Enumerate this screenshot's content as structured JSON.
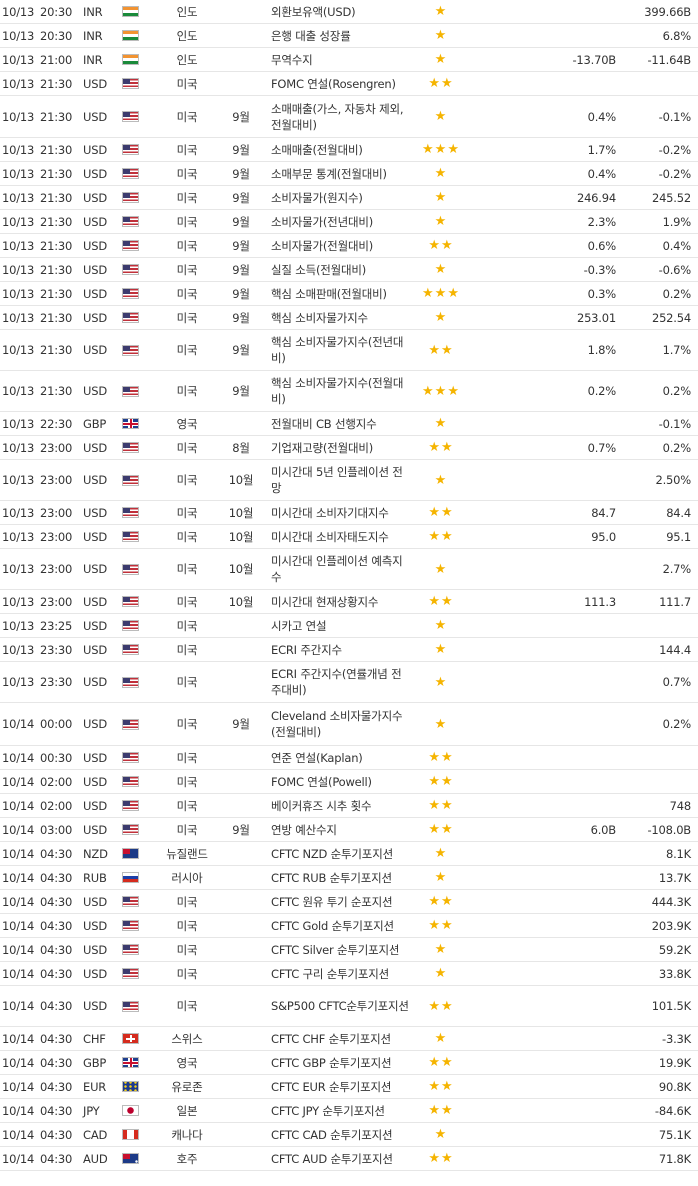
{
  "colors": {
    "star": "#f5b400",
    "divider": "#e6e6e6",
    "text": "#333333"
  },
  "rows": [
    {
      "date": "10/13",
      "time": "20:30",
      "cur": "INR",
      "flag": "india-flag",
      "country": "인도",
      "period": "",
      "event": "외환보유액(USD)",
      "stars": 1,
      "actual": "",
      "forecast": "",
      "previous": "399.66B"
    },
    {
      "date": "10/13",
      "time": "20:30",
      "cur": "INR",
      "flag": "india-flag",
      "country": "인도",
      "period": "",
      "event": "은행 대출 성장률",
      "stars": 1,
      "actual": "",
      "forecast": "",
      "previous": "6.8%"
    },
    {
      "date": "10/13",
      "time": "21:00",
      "cur": "INR",
      "flag": "india-flag",
      "country": "인도",
      "period": "",
      "event": "무역수지",
      "stars": 1,
      "actual": "",
      "forecast": "-13.70B",
      "previous": "-11.64B"
    },
    {
      "date": "10/13",
      "time": "21:30",
      "cur": "USD",
      "flag": "us-flag",
      "country": "미국",
      "period": "",
      "event": "FOMC 연설(Rosengren)",
      "stars": 2,
      "actual": "",
      "forecast": "",
      "previous": ""
    },
    {
      "date": "10/13",
      "time": "21:30",
      "cur": "USD",
      "flag": "us-flag",
      "country": "미국",
      "period": "9월",
      "event": "소매매출(가스, 자동차 제외, 전월대비)",
      "stars": 1,
      "actual": "",
      "forecast": "0.4%",
      "previous": "-0.1%"
    },
    {
      "date": "10/13",
      "time": "21:30",
      "cur": "USD",
      "flag": "us-flag",
      "country": "미국",
      "period": "9월",
      "event": "소매매출(전월대비)",
      "stars": 3,
      "actual": "",
      "forecast": "1.7%",
      "previous": "-0.2%"
    },
    {
      "date": "10/13",
      "time": "21:30",
      "cur": "USD",
      "flag": "us-flag",
      "country": "미국",
      "period": "9월",
      "event": "소매부문 통계(전월대비)",
      "stars": 1,
      "actual": "",
      "forecast": "0.4%",
      "previous": "-0.2%"
    },
    {
      "date": "10/13",
      "time": "21:30",
      "cur": "USD",
      "flag": "us-flag",
      "country": "미국",
      "period": "9월",
      "event": "소비자물가(원지수)",
      "stars": 1,
      "actual": "",
      "forecast": "246.94",
      "previous": "245.52"
    },
    {
      "date": "10/13",
      "time": "21:30",
      "cur": "USD",
      "flag": "us-flag",
      "country": "미국",
      "period": "9월",
      "event": "소비자물가(전년대비)",
      "stars": 1,
      "actual": "",
      "forecast": "2.3%",
      "previous": "1.9%"
    },
    {
      "date": "10/13",
      "time": "21:30",
      "cur": "USD",
      "flag": "us-flag",
      "country": "미국",
      "period": "9월",
      "event": "소비자물가(전월대비)",
      "stars": 2,
      "actual": "",
      "forecast": "0.6%",
      "previous": "0.4%"
    },
    {
      "date": "10/13",
      "time": "21:30",
      "cur": "USD",
      "flag": "us-flag",
      "country": "미국",
      "period": "9월",
      "event": "실질 소득(전월대비)",
      "stars": 1,
      "actual": "",
      "forecast": "-0.3%",
      "previous": "-0.6%"
    },
    {
      "date": "10/13",
      "time": "21:30",
      "cur": "USD",
      "flag": "us-flag",
      "country": "미국",
      "period": "9월",
      "event": "핵심 소매판매(전월대비)",
      "stars": 3,
      "actual": "",
      "forecast": "0.3%",
      "previous": "0.2%"
    },
    {
      "date": "10/13",
      "time": "21:30",
      "cur": "USD",
      "flag": "us-flag",
      "country": "미국",
      "period": "9월",
      "event": "핵심 소비자물가지수",
      "stars": 1,
      "actual": "",
      "forecast": "253.01",
      "previous": "252.54"
    },
    {
      "date": "10/13",
      "time": "21:30",
      "cur": "USD",
      "flag": "us-flag",
      "country": "미국",
      "period": "9월",
      "event": "핵심 소비자물가지수(전년대비)",
      "stars": 2,
      "actual": "",
      "forecast": "1.8%",
      "previous": "1.7%"
    },
    {
      "date": "10/13",
      "time": "21:30",
      "cur": "USD",
      "flag": "us-flag",
      "country": "미국",
      "period": "9월",
      "event": "핵심 소비자물가지수(전월대비)",
      "stars": 3,
      "actual": "",
      "forecast": "0.2%",
      "previous": "0.2%"
    },
    {
      "date": "10/13",
      "time": "22:30",
      "cur": "GBP",
      "flag": "uk-flag",
      "country": "영국",
      "period": "",
      "event": "전월대비 CB 선행지수",
      "stars": 1,
      "actual": "",
      "forecast": "",
      "previous": "-0.1%"
    },
    {
      "date": "10/13",
      "time": "23:00",
      "cur": "USD",
      "flag": "us-flag",
      "country": "미국",
      "period": "8월",
      "event": "기업재고량(전월대비)",
      "stars": 2,
      "actual": "",
      "forecast": "0.7%",
      "previous": "0.2%"
    },
    {
      "date": "10/13",
      "time": "23:00",
      "cur": "USD",
      "flag": "us-flag",
      "country": "미국",
      "period": "10월",
      "event": "미시간대 5년 인플레이션 전망",
      "stars": 1,
      "actual": "",
      "forecast": "",
      "previous": "2.50%"
    },
    {
      "date": "10/13",
      "time": "23:00",
      "cur": "USD",
      "flag": "us-flag",
      "country": "미국",
      "period": "10월",
      "event": "미시간대 소비자기대지수",
      "stars": 2,
      "actual": "",
      "forecast": "84.7",
      "previous": "84.4"
    },
    {
      "date": "10/13",
      "time": "23:00",
      "cur": "USD",
      "flag": "us-flag",
      "country": "미국",
      "period": "10월",
      "event": "미시간대 소비자태도지수",
      "stars": 2,
      "actual": "",
      "forecast": "95.0",
      "previous": "95.1"
    },
    {
      "date": "10/13",
      "time": "23:00",
      "cur": "USD",
      "flag": "us-flag",
      "country": "미국",
      "period": "10월",
      "event": "미시간대 인플레이션 예측지수",
      "stars": 1,
      "actual": "",
      "forecast": "",
      "previous": "2.7%"
    },
    {
      "date": "10/13",
      "time": "23:00",
      "cur": "USD",
      "flag": "us-flag",
      "country": "미국",
      "period": "10월",
      "event": "미시간대 현재상황지수",
      "stars": 2,
      "actual": "",
      "forecast": "111.3",
      "previous": "111.7"
    },
    {
      "date": "10/13",
      "time": "23:25",
      "cur": "USD",
      "flag": "us-flag",
      "country": "미국",
      "period": "",
      "event": "시카고 연설",
      "stars": 1,
      "actual": "",
      "forecast": "",
      "previous": ""
    },
    {
      "date": "10/13",
      "time": "23:30",
      "cur": "USD",
      "flag": "us-flag",
      "country": "미국",
      "period": "",
      "event": "ECRI 주간지수",
      "stars": 1,
      "actual": "",
      "forecast": "",
      "previous": "144.4"
    },
    {
      "date": "10/13",
      "time": "23:30",
      "cur": "USD",
      "flag": "us-flag",
      "country": "미국",
      "period": "",
      "event": "ECRI 주간지수(연률개념 전주대비)",
      "stars": 1,
      "actual": "",
      "forecast": "",
      "previous": "0.7%"
    },
    {
      "date": "10/14",
      "time": "00:00",
      "cur": "USD",
      "flag": "us-flag",
      "country": "미국",
      "period": "9월",
      "event": "Cleveland 소비자물가지수(전월대비)",
      "stars": 1,
      "actual": "",
      "forecast": "",
      "previous": "0.2%"
    },
    {
      "date": "10/14",
      "time": "00:30",
      "cur": "USD",
      "flag": "us-flag",
      "country": "미국",
      "period": "",
      "event": "연준 연설(Kaplan)",
      "stars": 2,
      "actual": "",
      "forecast": "",
      "previous": ""
    },
    {
      "date": "10/14",
      "time": "02:00",
      "cur": "USD",
      "flag": "us-flag",
      "country": "미국",
      "period": "",
      "event": "FOMC 연설(Powell)",
      "stars": 2,
      "actual": "",
      "forecast": "",
      "previous": ""
    },
    {
      "date": "10/14",
      "time": "02:00",
      "cur": "USD",
      "flag": "us-flag",
      "country": "미국",
      "period": "",
      "event": "베이커휴즈 시추 횟수",
      "stars": 2,
      "actual": "",
      "forecast": "",
      "previous": "748"
    },
    {
      "date": "10/14",
      "time": "03:00",
      "cur": "USD",
      "flag": "us-flag",
      "country": "미국",
      "period": "9월",
      "event": "연방 예산수지",
      "stars": 2,
      "actual": "",
      "forecast": "6.0B",
      "previous": "-108.0B"
    },
    {
      "date": "10/14",
      "time": "04:30",
      "cur": "NZD",
      "flag": "new-zealand-flag",
      "country": "뉴질랜드",
      "period": "",
      "event": "CFTC NZD 순투기포지션",
      "stars": 1,
      "actual": "",
      "forecast": "",
      "previous": "8.1K"
    },
    {
      "date": "10/14",
      "time": "04:30",
      "cur": "RUB",
      "flag": "russia-flag",
      "country": "러시아",
      "period": "",
      "event": "CFTC RUB 순투기포지션",
      "stars": 1,
      "actual": "",
      "forecast": "",
      "previous": "13.7K"
    },
    {
      "date": "10/14",
      "time": "04:30",
      "cur": "USD",
      "flag": "us-flag",
      "country": "미국",
      "period": "",
      "event": "CFTC 원유 투기 순포지션",
      "stars": 2,
      "actual": "",
      "forecast": "",
      "previous": "444.3K"
    },
    {
      "date": "10/14",
      "time": "04:30",
      "cur": "USD",
      "flag": "us-flag",
      "country": "미국",
      "period": "",
      "event": "CFTC Gold 순투기포지션",
      "stars": 2,
      "actual": "",
      "forecast": "",
      "previous": "203.9K"
    },
    {
      "date": "10/14",
      "time": "04:30",
      "cur": "USD",
      "flag": "us-flag",
      "country": "미국",
      "period": "",
      "event": "CFTC Silver 순투기포지션",
      "stars": 1,
      "actual": "",
      "forecast": "",
      "previous": "59.2K"
    },
    {
      "date": "10/14",
      "time": "04:30",
      "cur": "USD",
      "flag": "us-flag",
      "country": "미국",
      "period": "",
      "event": "CFTC 구리 순투기포지션",
      "stars": 1,
      "actual": "",
      "forecast": "",
      "previous": "33.8K"
    },
    {
      "date": "10/14",
      "time": "04:30",
      "cur": "USD",
      "flag": "us-flag",
      "country": "미국",
      "period": "",
      "event": "S&P500 CFTC순투기포지션",
      "stars": 2,
      "actual": "",
      "forecast": "",
      "previous": "101.5K"
    },
    {
      "date": "10/14",
      "time": "04:30",
      "cur": "CHF",
      "flag": "switzerland-flag",
      "country": "스위스",
      "period": "",
      "event": "CFTC CHF 순투기포지션",
      "stars": 1,
      "actual": "",
      "forecast": "",
      "previous": "-3.3K"
    },
    {
      "date": "10/14",
      "time": "04:30",
      "cur": "GBP",
      "flag": "uk-flag",
      "country": "영국",
      "period": "",
      "event": "CFTC GBP 순투기포지션",
      "stars": 2,
      "actual": "",
      "forecast": "",
      "previous": "19.9K"
    },
    {
      "date": "10/14",
      "time": "04:30",
      "cur": "EUR",
      "flag": "eu-flag",
      "country": "유로존",
      "period": "",
      "event": "CFTC EUR 순투기포지션",
      "stars": 2,
      "actual": "",
      "forecast": "",
      "previous": "90.8K"
    },
    {
      "date": "10/14",
      "time": "04:30",
      "cur": "JPY",
      "flag": "japan-flag",
      "country": "일본",
      "period": "",
      "event": "CFTC JPY 순투기포지션",
      "stars": 2,
      "actual": "",
      "forecast": "",
      "previous": "-84.6K"
    },
    {
      "date": "10/14",
      "time": "04:30",
      "cur": "CAD",
      "flag": "canada-flag",
      "country": "캐나다",
      "period": "",
      "event": "CFTC CAD 순투기포지션",
      "stars": 1,
      "actual": "",
      "forecast": "",
      "previous": "75.1K"
    },
    {
      "date": "10/14",
      "time": "04:30",
      "cur": "AUD",
      "flag": "australia-flag",
      "country": "호주",
      "period": "",
      "event": "CFTC AUD 순투기포지션",
      "stars": 2,
      "actual": "",
      "forecast": "",
      "previous": "71.8K"
    }
  ]
}
